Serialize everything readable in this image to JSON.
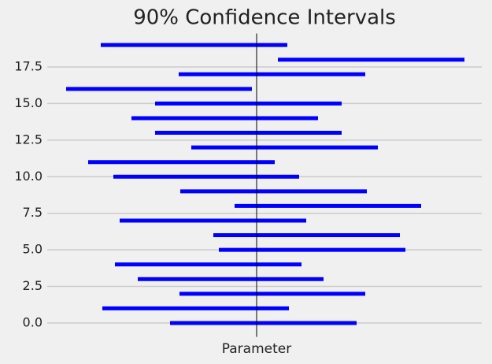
{
  "chart_data": {
    "type": "interval",
    "title": "90% Confidence Intervals",
    "x_label": "Parameter",
    "y": [
      0,
      1,
      2,
      3,
      4,
      5,
      6,
      7,
      8,
      9,
      10,
      11,
      12,
      13,
      14,
      15,
      16,
      17,
      18,
      19
    ],
    "lows": [
      -1.1,
      -1.96,
      -0.98,
      -1.51,
      -1.8,
      -0.48,
      -0.55,
      -1.74,
      -0.28,
      -0.97,
      -1.82,
      -2.14,
      -0.83,
      -1.29,
      -1.59,
      -1.29,
      -2.42,
      -0.99,
      0.27,
      -1.98
    ],
    "highs": [
      1.27,
      0.41,
      1.38,
      0.85,
      0.57,
      1.89,
      1.82,
      0.63,
      2.09,
      1.4,
      0.54,
      0.23,
      1.54,
      1.08,
      0.78,
      1.08,
      -0.06,
      1.38,
      2.64,
      0.39
    ],
    "parameter": 0,
    "color": "#0000ff",
    "parameter_color": "#000000",
    "grid_color": "#cbcbcb",
    "xlim": [
      -2.66,
      2.86
    ],
    "ylim": [
      -0.95,
      19.95
    ],
    "yticks": [
      {
        "value": 0,
        "label": "0.0"
      },
      {
        "value": 2.5,
        "label": "2.5"
      },
      {
        "value": 5,
        "label": "5.0"
      },
      {
        "value": 7.5,
        "label": "7.5"
      },
      {
        "value": 10,
        "label": "10.0"
      },
      {
        "value": 12.5,
        "label": "12.5"
      },
      {
        "value": 15,
        "label": "15.0"
      },
      {
        "value": 17.5,
        "label": "17.5"
      }
    ],
    "grid": true
  }
}
